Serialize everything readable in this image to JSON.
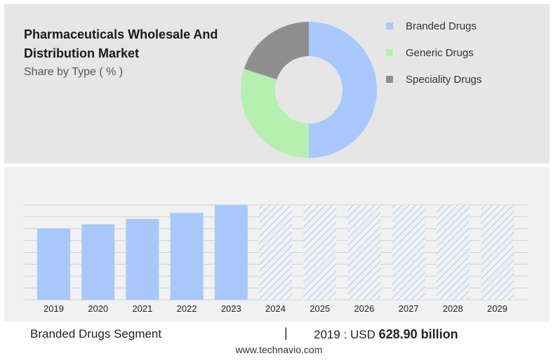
{
  "header": {
    "title": "Pharmaceuticals Wholesale And Distribution Market",
    "subtitle": "Share by Type ( % )"
  },
  "chart_data": [
    {
      "type": "pie",
      "variant": "donut",
      "labels": [
        "Branded Drugs",
        "Generic Drugs",
        "Speciality Drugs"
      ],
      "values": [
        50,
        30,
        20
      ],
      "colors": [
        "#a8c8fb",
        "#b4f0b0",
        "#8e8e8e"
      ]
    },
    {
      "type": "bar",
      "categories": [
        "2019",
        "2020",
        "2021",
        "2022",
        "2023",
        "2024",
        "2025",
        "2026",
        "2027",
        "2028",
        "2029"
      ],
      "values": [
        628.9,
        664,
        711,
        764,
        834,
        834,
        834,
        834,
        834,
        834,
        834
      ],
      "forecast_from": "2024",
      "ylim": [
        0,
        834
      ],
      "grid": true,
      "colors": {
        "actual": "#a8c8fb",
        "forecast_hatch": "#a8c8fb"
      }
    }
  ],
  "footer": {
    "segment_label": "Branded Drugs Segment",
    "separator": "|",
    "value_prefix": "2019 : USD",
    "value": "628.90 billion",
    "source": "www.technavio.com"
  }
}
